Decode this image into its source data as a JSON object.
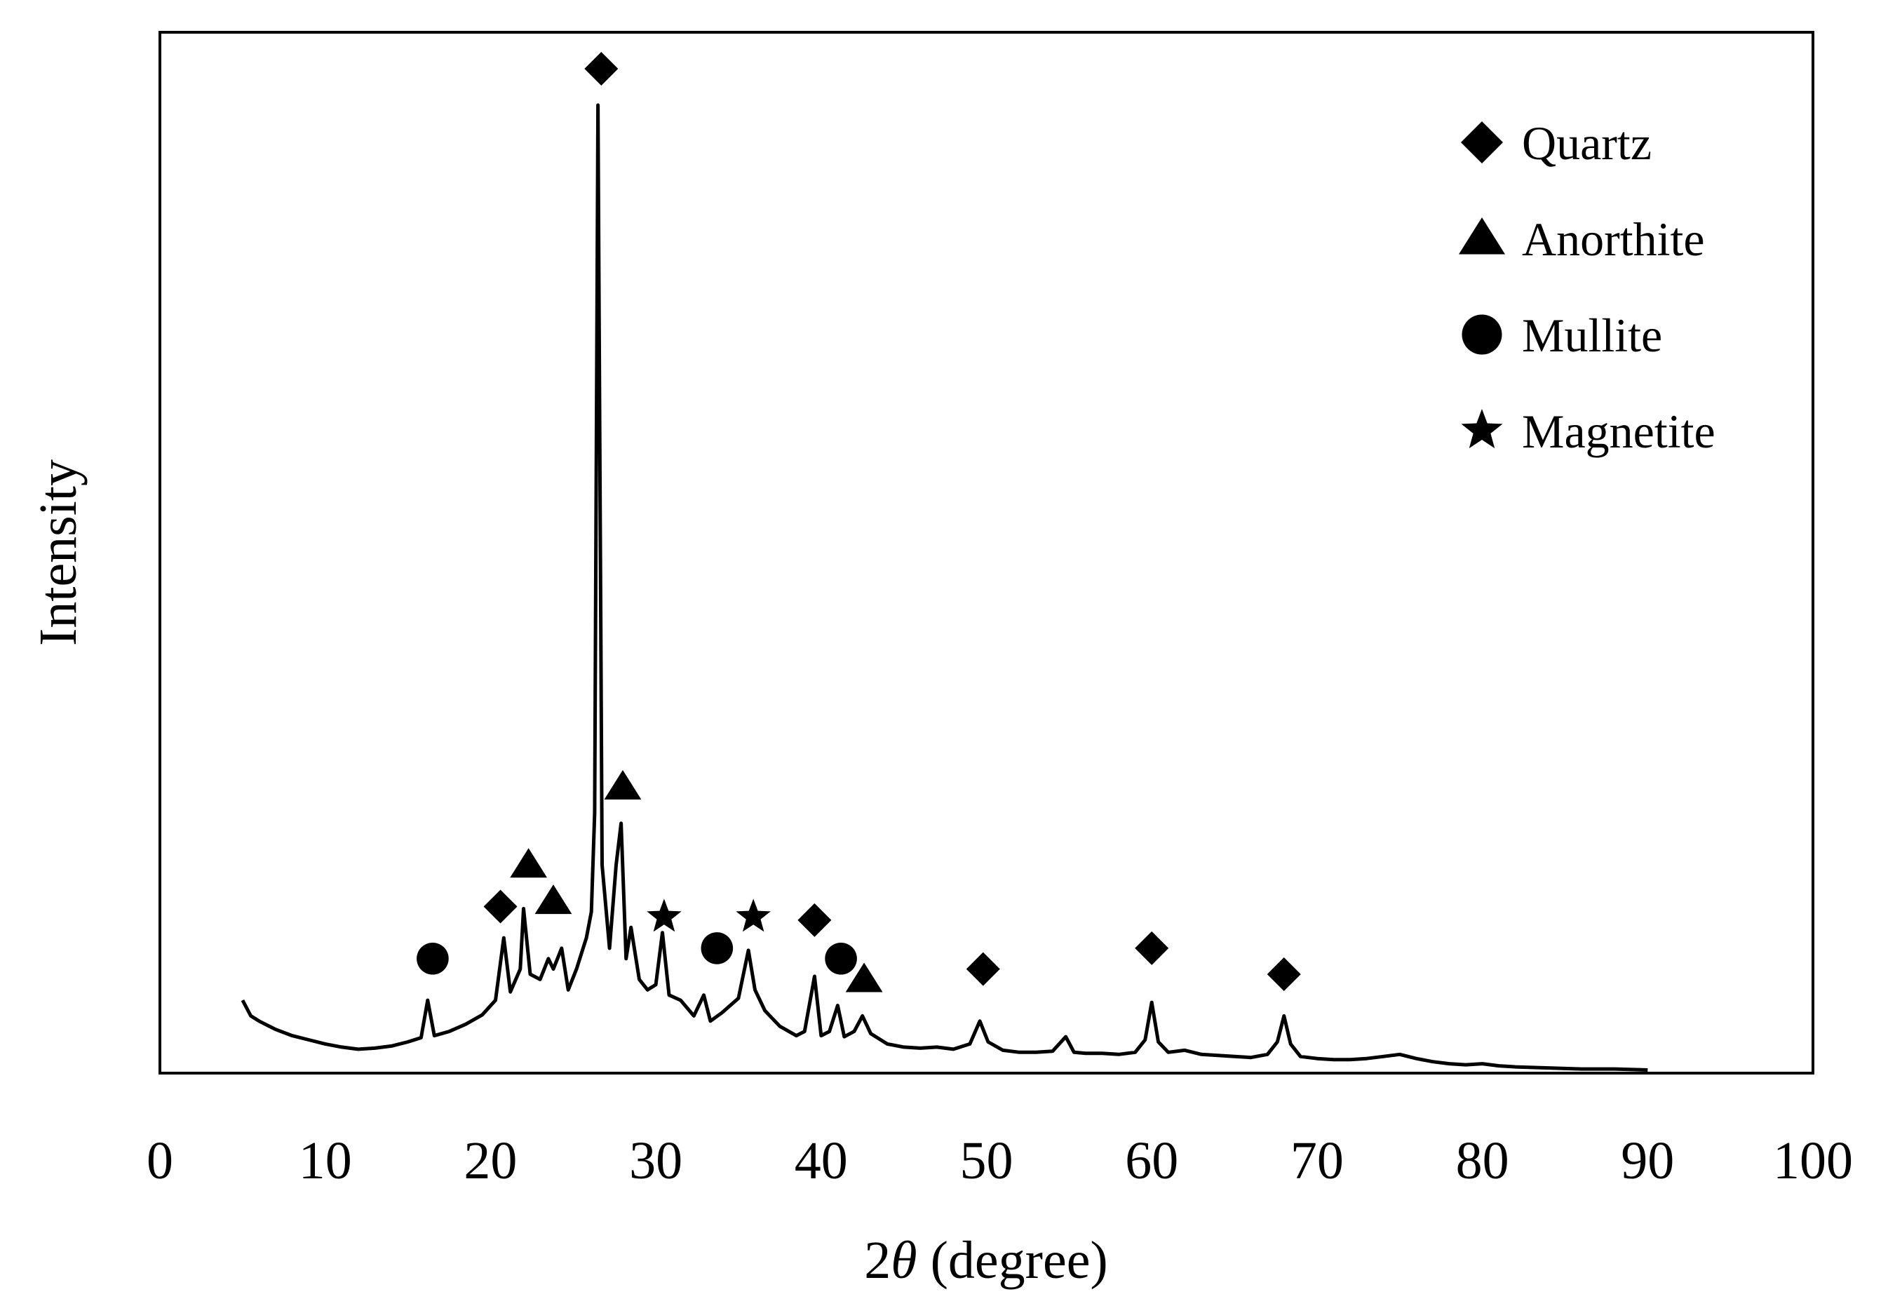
{
  "chart_data": {
    "type": "line",
    "title": "",
    "xlabel": "2θ (degree)",
    "xlabel_parts": {
      "main": "2",
      "theta": "θ",
      "rest": " (degree)"
    },
    "ylabel": "Intensity",
    "xlim": [
      0,
      100
    ],
    "ylim": [
      0,
      1
    ],
    "x_ticks": [
      "0",
      "10",
      "20",
      "30",
      "40",
      "50",
      "60",
      "70",
      "80",
      "90",
      "100"
    ],
    "y_ticks": [],
    "grid": false,
    "legend_position": "top-right",
    "colors": {
      "line": "#000000",
      "markers": "#000000",
      "frame": "#000000"
    },
    "series": [
      {
        "values": [
          [
            5.0,
            0.07
          ],
          [
            5.5,
            0.055
          ],
          [
            6,
            0.05
          ],
          [
            7,
            0.042
          ],
          [
            8,
            0.036
          ],
          [
            9,
            0.032
          ],
          [
            10,
            0.028
          ],
          [
            11,
            0.025
          ],
          [
            12,
            0.023
          ],
          [
            13,
            0.024
          ],
          [
            14,
            0.026
          ],
          [
            15,
            0.03
          ],
          [
            15.8,
            0.034
          ],
          [
            16.2,
            0.07
          ],
          [
            16.6,
            0.036
          ],
          [
            17.5,
            0.04
          ],
          [
            18.5,
            0.047
          ],
          [
            19.5,
            0.056
          ],
          [
            20.3,
            0.07
          ],
          [
            20.8,
            0.13
          ],
          [
            21.2,
            0.078
          ],
          [
            21.8,
            0.1
          ],
          [
            22.0,
            0.158
          ],
          [
            22.4,
            0.095
          ],
          [
            23.0,
            0.09
          ],
          [
            23.5,
            0.11
          ],
          [
            23.8,
            0.1
          ],
          [
            24.3,
            0.12
          ],
          [
            24.7,
            0.08
          ],
          [
            25.2,
            0.1
          ],
          [
            25.8,
            0.13
          ],
          [
            26.1,
            0.155
          ],
          [
            26.3,
            0.25
          ],
          [
            26.5,
            0.93
          ],
          [
            26.75,
            0.2
          ],
          [
            27.2,
            0.12
          ],
          [
            27.6,
            0.2
          ],
          [
            27.9,
            0.24
          ],
          [
            28.2,
            0.11
          ],
          [
            28.5,
            0.14
          ],
          [
            29.0,
            0.09
          ],
          [
            29.5,
            0.08
          ],
          [
            30.0,
            0.085
          ],
          [
            30.4,
            0.135
          ],
          [
            30.8,
            0.075
          ],
          [
            31.5,
            0.07
          ],
          [
            32.3,
            0.055
          ],
          [
            32.9,
            0.075
          ],
          [
            33.3,
            0.05
          ],
          [
            34.0,
            0.058
          ],
          [
            35.0,
            0.072
          ],
          [
            35.6,
            0.118
          ],
          [
            36.0,
            0.08
          ],
          [
            36.6,
            0.06
          ],
          [
            37.5,
            0.045
          ],
          [
            38.5,
            0.036
          ],
          [
            39.0,
            0.04
          ],
          [
            39.6,
            0.093
          ],
          [
            40.0,
            0.036
          ],
          [
            40.5,
            0.04
          ],
          [
            41.0,
            0.065
          ],
          [
            41.4,
            0.035
          ],
          [
            42.0,
            0.04
          ],
          [
            42.5,
            0.055
          ],
          [
            43.0,
            0.038
          ],
          [
            44.0,
            0.028
          ],
          [
            45.0,
            0.025
          ],
          [
            46.0,
            0.024
          ],
          [
            47.0,
            0.025
          ],
          [
            48.0,
            0.023
          ],
          [
            49.0,
            0.028
          ],
          [
            49.6,
            0.05
          ],
          [
            50.1,
            0.03
          ],
          [
            51.0,
            0.022
          ],
          [
            52.0,
            0.02
          ],
          [
            53.0,
            0.02
          ],
          [
            54.0,
            0.021
          ],
          [
            54.8,
            0.035
          ],
          [
            55.3,
            0.02
          ],
          [
            56.0,
            0.019
          ],
          [
            57.0,
            0.019
          ],
          [
            58.0,
            0.018
          ],
          [
            59.0,
            0.02
          ],
          [
            59.6,
            0.032
          ],
          [
            60.0,
            0.068
          ],
          [
            60.4,
            0.03
          ],
          [
            61.0,
            0.02
          ],
          [
            62.0,
            0.022
          ],
          [
            63.0,
            0.018
          ],
          [
            64.0,
            0.017
          ],
          [
            65.0,
            0.016
          ],
          [
            66.0,
            0.015
          ],
          [
            67.0,
            0.018
          ],
          [
            67.6,
            0.03
          ],
          [
            68.0,
            0.055
          ],
          [
            68.4,
            0.028
          ],
          [
            69.0,
            0.016
          ],
          [
            70.0,
            0.014
          ],
          [
            71.0,
            0.013
          ],
          [
            72.0,
            0.013
          ],
          [
            73.0,
            0.014
          ],
          [
            74.0,
            0.016
          ],
          [
            75.0,
            0.018
          ],
          [
            76.0,
            0.014
          ],
          [
            77.0,
            0.011
          ],
          [
            78.0,
            0.009
          ],
          [
            79.0,
            0.008
          ],
          [
            80.0,
            0.009
          ],
          [
            81.0,
            0.007
          ],
          [
            82.0,
            0.006
          ],
          [
            84.0,
            0.005
          ],
          [
            86.0,
            0.004
          ],
          [
            88.0,
            0.004
          ],
          [
            90.0,
            0.003
          ]
        ]
      }
    ],
    "legend": [
      {
        "marker": "diamond",
        "label": "Quartz"
      },
      {
        "marker": "triangle",
        "label": "Anorthite"
      },
      {
        "marker": "circle",
        "label": "Mullite"
      },
      {
        "marker": "star",
        "label": "Magnetite"
      }
    ],
    "peak_markers": [
      {
        "x": 16.5,
        "y": 0.11,
        "marker": "circle"
      },
      {
        "x": 20.6,
        "y": 0.16,
        "marker": "diamond"
      },
      {
        "x": 22.3,
        "y": 0.2,
        "marker": "triangle"
      },
      {
        "x": 23.8,
        "y": 0.165,
        "marker": "triangle"
      },
      {
        "x": 26.7,
        "y": 0.965,
        "marker": "diamond"
      },
      {
        "x": 28.0,
        "y": 0.275,
        "marker": "triangle"
      },
      {
        "x": 30.5,
        "y": 0.15,
        "marker": "star"
      },
      {
        "x": 33.7,
        "y": 0.12,
        "marker": "circle"
      },
      {
        "x": 35.9,
        "y": 0.15,
        "marker": "star"
      },
      {
        "x": 39.6,
        "y": 0.147,
        "marker": "diamond"
      },
      {
        "x": 41.2,
        "y": 0.11,
        "marker": "circle"
      },
      {
        "x": 42.6,
        "y": 0.09,
        "marker": "triangle"
      },
      {
        "x": 49.8,
        "y": 0.1,
        "marker": "diamond"
      },
      {
        "x": 60.0,
        "y": 0.12,
        "marker": "diamond"
      },
      {
        "x": 68.0,
        "y": 0.095,
        "marker": "diamond"
      }
    ]
  }
}
